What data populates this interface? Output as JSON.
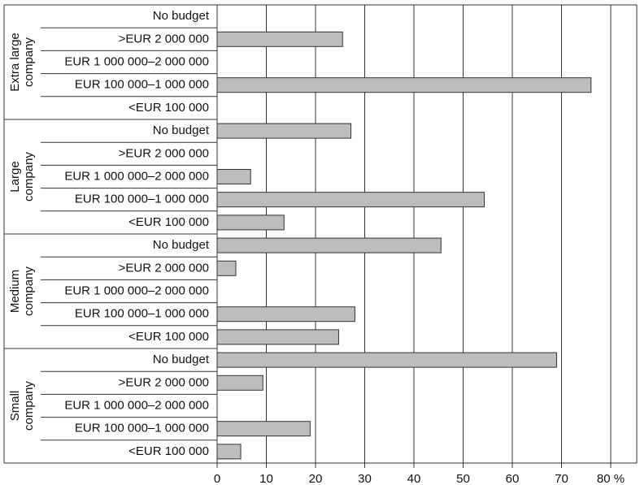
{
  "chart_data": {
    "type": "bar",
    "orientation": "horizontal",
    "color": "#bdbdbd",
    "xlim": [
      0,
      80
    ],
    "xticks": [
      0,
      10,
      20,
      30,
      40,
      50,
      60,
      70,
      {
        "value": 80,
        "label": "80 %"
      }
    ],
    "grid": true,
    "groups": [
      {
        "label": [
          "Extra large",
          "company"
        ],
        "categories": [
          "No budget",
          ">EUR 2 000 000",
          "EUR 1 000 000–2 000 000",
          "EUR 100 000–1 000 000",
          "<EUR 100 000"
        ],
        "values": [
          0,
          25.5,
          0,
          76,
          0
        ]
      },
      {
        "label": [
          "Large",
          "company"
        ],
        "categories": [
          "No budget",
          ">EUR 2 000 000",
          "EUR 1 000 000–2 000 000",
          "EUR 100 000–1 000 000",
          "<EUR 100 000"
        ],
        "values": [
          27.2,
          0,
          6.8,
          54.3,
          13.6
        ]
      },
      {
        "label": [
          "Medium",
          "company"
        ],
        "categories": [
          "No budget",
          ">EUR 2 000 000",
          "EUR 1 000 000–2 000 000",
          "EUR 100 000–1 000 000",
          "<EUR 100 000"
        ],
        "values": [
          45.5,
          3.8,
          0,
          28,
          24.7
        ]
      },
      {
        "label": [
          "Small",
          "company"
        ],
        "categories": [
          "No budget",
          ">EUR 2 000 000",
          "EUR 1 000 000–2 000 000",
          "EUR 100 000–1 000 000",
          "<EUR 100 000"
        ],
        "values": [
          69,
          9.3,
          0,
          18.9,
          4.8
        ]
      }
    ]
  }
}
